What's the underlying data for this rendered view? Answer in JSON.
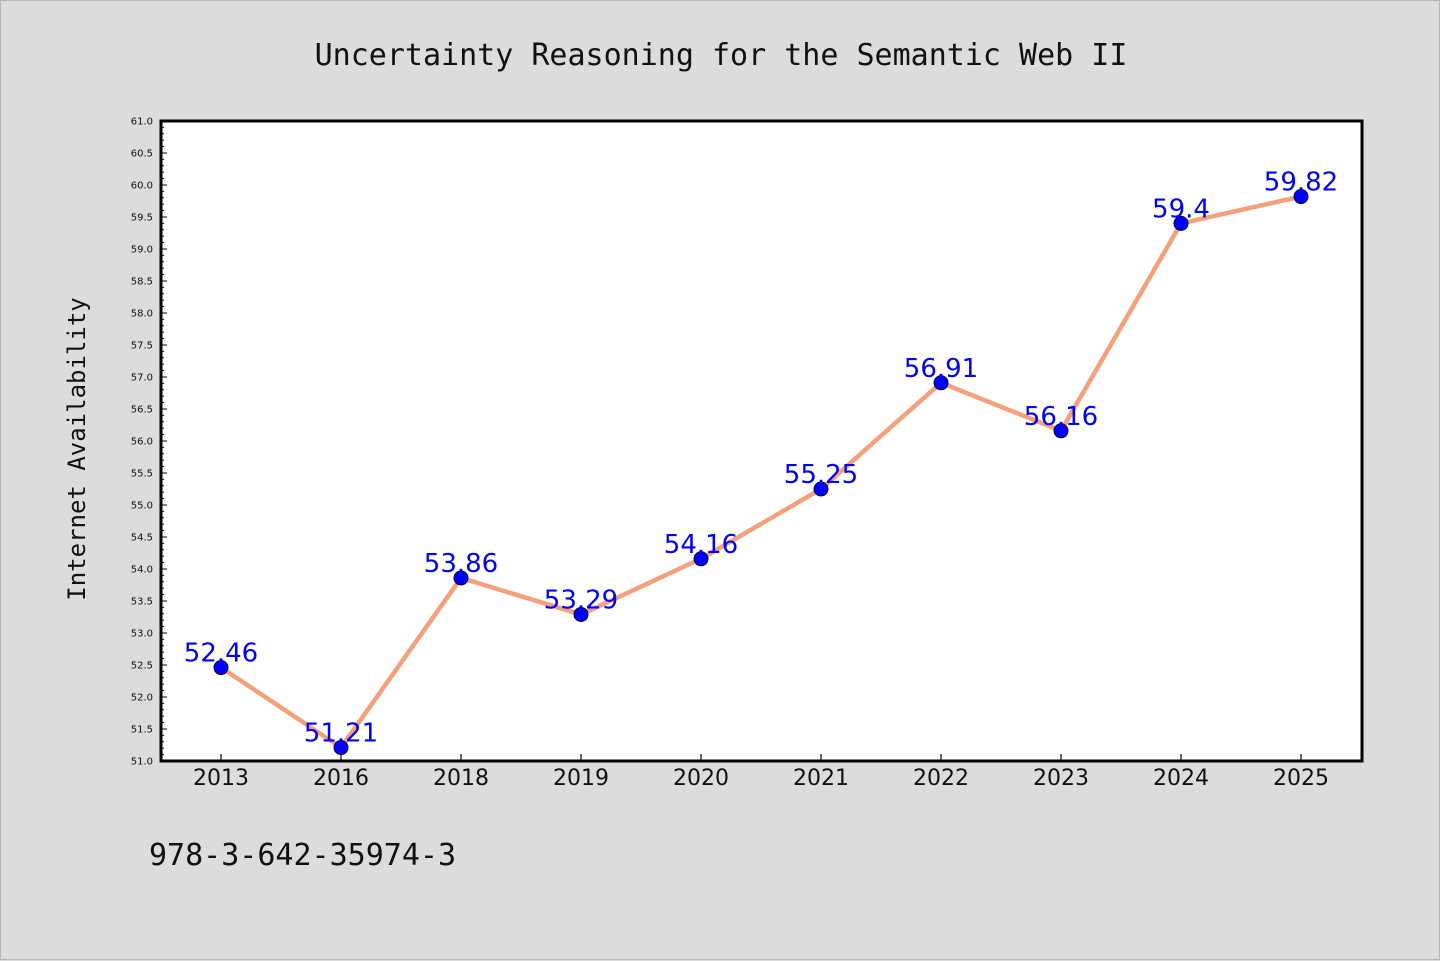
{
  "chart_data": {
    "type": "line",
    "title": "Uncertainty Reasoning for the Semantic Web II",
    "xlabel": "",
    "ylabel": "Internet Availability",
    "categories": [
      "2013",
      "2016",
      "2018",
      "2019",
      "2020",
      "2021",
      "2022",
      "2023",
      "2024",
      "2025"
    ],
    "series": [
      {
        "values": [
          52.46,
          51.21,
          53.86,
          53.29,
          54.16,
          55.25,
          56.91,
          56.16,
          59.4,
          59.82
        ],
        "labels": [
          "52.46",
          "51.21",
          "53.86",
          "53.29",
          "54.16",
          "55.25",
          "56.91",
          "56.16",
          "59.4",
          "59.82"
        ]
      }
    ],
    "ylim": [
      51.0,
      61.0
    ],
    "yticks": [
      "51.0",
      "51.5",
      "52.0",
      "52.5",
      "53.0",
      "53.5",
      "54.0",
      "54.5",
      "55.0",
      "55.5",
      "56.0",
      "56.5",
      "57.0",
      "57.5",
      "58.0",
      "58.5",
      "59.0",
      "59.5",
      "60.0",
      "60.5",
      "61.0"
    ],
    "grid": false,
    "legend": "none",
    "colors": {
      "line": "#f4a07a",
      "marker": "#0000ff",
      "label": "#0000ff",
      "background": "#dcdcdc",
      "plot_background": "#ffffff"
    }
  },
  "footer": {
    "text": "978-3-642-35974-3"
  }
}
